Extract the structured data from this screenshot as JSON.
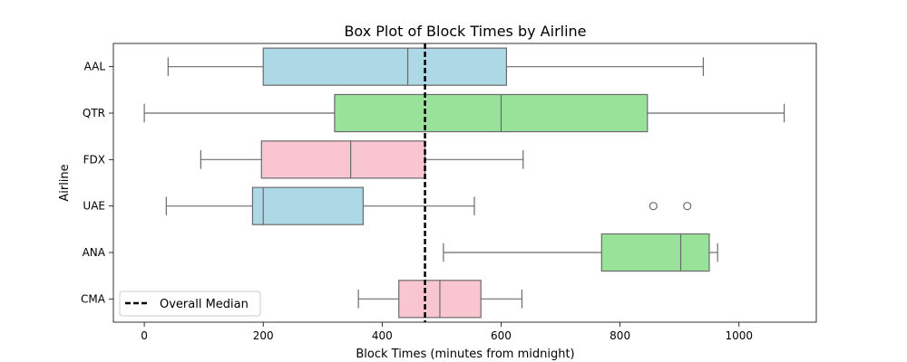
{
  "chart_data": {
    "type": "box",
    "orientation": "horizontal",
    "title": "Box Plot of Block Times by Airline",
    "xlabel": "Block Times (minutes from midnight)",
    "ylabel": "Airline",
    "xlim": [
      -52,
      1130
    ],
    "xticks": [
      0,
      200,
      400,
      600,
      800,
      1000
    ],
    "grid": false,
    "legend": {
      "position": "lower-left",
      "entries": [
        "Overall Median"
      ]
    },
    "reference_line": {
      "name": "Overall Median",
      "value": 472,
      "style": "dashed",
      "color": "#000000"
    },
    "categories": [
      "AAL",
      "QTR",
      "FDX",
      "UAE",
      "ANA",
      "CMA"
    ],
    "boxes": [
      {
        "category": "AAL",
        "whisker_low": 40,
        "q1": 200,
        "median": 443,
        "q3": 609,
        "whisker_high": 940,
        "outliers": [],
        "color": "#add8e6"
      },
      {
        "category": "QTR",
        "whisker_low": 0,
        "q1": 320,
        "median": 600,
        "q3": 846,
        "whisker_high": 1076,
        "outliers": [],
        "color": "#98e29a"
      },
      {
        "category": "FDX",
        "whisker_low": 95,
        "q1": 197,
        "median": 347,
        "q3": 472,
        "whisker_high": 637,
        "outliers": [],
        "color": "#f8c5d0"
      },
      {
        "category": "UAE",
        "whisker_low": 37,
        "q1": 182,
        "median": 200,
        "q3": 368,
        "whisker_high": 555,
        "outliers": [
          856,
          913
        ],
        "color": "#add8e6"
      },
      {
        "category": "ANA",
        "whisker_low": 503,
        "q1": 769,
        "median": 902,
        "q3": 950,
        "whisker_high": 964,
        "outliers": [],
        "color": "#98e29a"
      },
      {
        "category": "CMA",
        "whisker_low": 360,
        "q1": 428,
        "median": 497,
        "q3": 566,
        "whisker_high": 635,
        "outliers": [],
        "color": "#f8c5d0"
      }
    ]
  }
}
